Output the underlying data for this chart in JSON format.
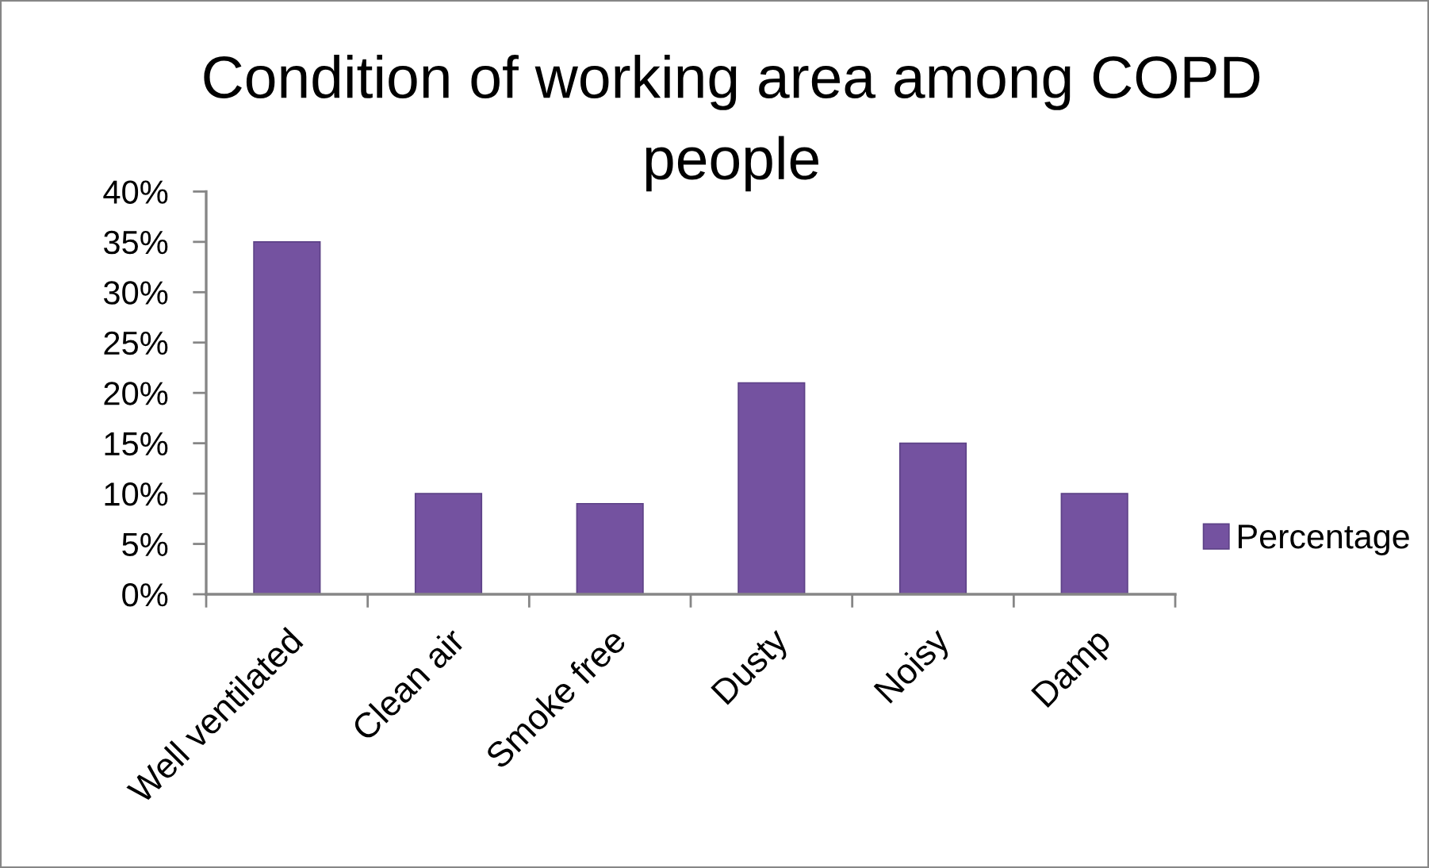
{
  "chart_data": {
    "type": "bar",
    "title": "Condition of working area among COPD people",
    "categories": [
      "Well ventilated",
      "Clean air",
      "Smoke free",
      "Dusty",
      "Noisy",
      "Damp"
    ],
    "series": [
      {
        "name": "Percentage",
        "color": "#7452a0",
        "values": [
          35,
          10,
          9,
          21,
          15,
          10
        ]
      }
    ],
    "ylim": [
      0,
      40
    ],
    "yticks": [
      {
        "value": 0,
        "label": "0%"
      },
      {
        "value": 5,
        "label": "5%"
      },
      {
        "value": 10,
        "label": "10%"
      },
      {
        "value": 15,
        "label": "15%"
      },
      {
        "value": 20,
        "label": "20%"
      },
      {
        "value": 25,
        "label": "25%"
      },
      {
        "value": 30,
        "label": "30%"
      },
      {
        "value": 35,
        "label": "35%"
      },
      {
        "value": 40,
        "label": "40%"
      }
    ],
    "grid": false,
    "legend": "right"
  }
}
